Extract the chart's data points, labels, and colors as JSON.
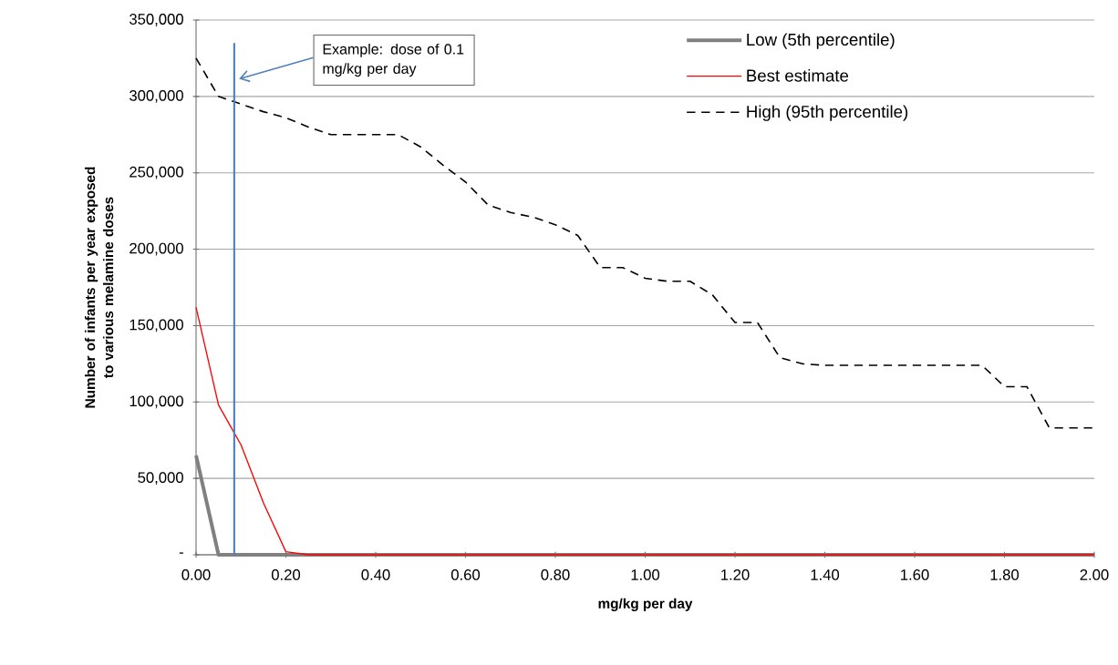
{
  "chart_data": {
    "type": "line",
    "xlabel": "mg/kg per day",
    "ylabel": "Number of infants per year exposed to various melamine doses",
    "x": [
      0,
      0.05,
      0.1,
      0.15,
      0.2,
      0.25,
      0.3,
      0.35,
      0.4,
      0.45,
      0.5,
      0.55,
      0.6,
      0.65,
      0.7,
      0.75,
      0.8,
      0.85,
      0.9,
      0.95,
      1.0,
      1.05,
      1.1,
      1.15,
      1.2,
      1.25,
      1.3,
      1.35,
      1.4,
      1.45,
      1.5,
      1.55,
      1.6,
      1.65,
      1.7,
      1.75,
      1.8,
      1.85,
      1.9,
      1.95,
      2.0
    ],
    "series": [
      {
        "name": "Low (5th percentile)",
        "color": "#808080",
        "line_style": "solid",
        "values": [
          65000,
          0,
          0,
          0,
          0,
          0,
          0,
          0,
          0,
          0,
          0,
          0,
          0,
          0,
          0,
          0,
          0,
          0,
          0,
          0,
          0,
          0,
          0,
          0,
          0,
          0,
          0,
          0,
          0,
          0,
          0,
          0,
          0,
          0,
          0,
          0,
          0,
          0,
          0,
          0,
          0
        ]
      },
      {
        "name": "Best estimate",
        "color": "#ff0000",
        "line_style": "solid",
        "values": [
          162000,
          98000,
          72000,
          34000,
          2000,
          0,
          0,
          0,
          0,
          0,
          0,
          0,
          0,
          0,
          0,
          0,
          0,
          0,
          0,
          0,
          0,
          0,
          0,
          0,
          0,
          0,
          0,
          0,
          0,
          0,
          0,
          0,
          0,
          0,
          0,
          0,
          0,
          0,
          0,
          0,
          0
        ]
      },
      {
        "name": "High (95th percentile)",
        "color": "#000000",
        "line_style": "dashed",
        "values": [
          325000,
          300000,
          295000,
          290000,
          286000,
          280000,
          275000,
          275000,
          275000,
          275000,
          267000,
          255000,
          244000,
          229000,
          224000,
          221000,
          216000,
          209000,
          188000,
          188000,
          181000,
          179000,
          179000,
          170000,
          152000,
          152000,
          129000,
          125000,
          124000,
          124000,
          124000,
          124000,
          124000,
          124000,
          124000,
          124000,
          110000,
          110000,
          83000,
          83000,
          83000
        ]
      }
    ],
    "xlim": [
      0,
      2
    ],
    "ylim": [
      0,
      350000
    ],
    "xticks": [
      {
        "value": 0,
        "label": "0.00"
      },
      {
        "value": 0.2,
        "label": "0.20"
      },
      {
        "value": 0.4,
        "label": "0.40"
      },
      {
        "value": 0.6,
        "label": "0.60"
      },
      {
        "value": 0.8,
        "label": "0.80"
      },
      {
        "value": 1.0,
        "label": "1.00"
      },
      {
        "value": 1.2,
        "label": "1.20"
      },
      {
        "value": 1.4,
        "label": "1.40"
      },
      {
        "value": 1.6,
        "label": "1.60"
      },
      {
        "value": 1.8,
        "label": "1.80"
      },
      {
        "value": 2.0,
        "label": "2.00"
      }
    ],
    "yticks": [
      {
        "value": 0,
        "label": "-"
      },
      {
        "value": 50000,
        "label": "50,000"
      },
      {
        "value": 100000,
        "label": "100,000"
      },
      {
        "value": 150000,
        "label": "150,000"
      },
      {
        "value": 200000,
        "label": "200,000"
      },
      {
        "value": 250000,
        "label": "250,000"
      },
      {
        "value": 300000,
        "label": "300,000"
      },
      {
        "value": 350000,
        "label": "350,000"
      }
    ],
    "ref_lines": [
      {
        "axis": "x",
        "value": 0.085,
        "label": "Example: dose of 0.1 mg/kg per day",
        "color": "#4f81bd"
      }
    ],
    "grid": "y",
    "legend": "top right",
    "marker": "none"
  }
}
